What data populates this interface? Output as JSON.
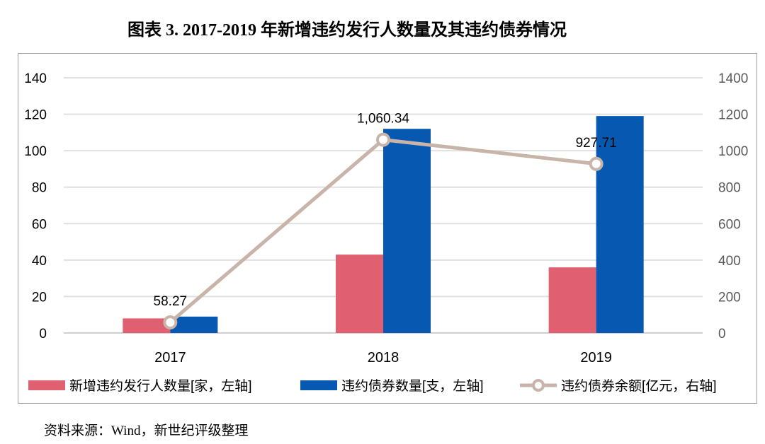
{
  "title": "图表 3. 2017-2019 年新增违约发行人数量及其违约债券情况",
  "source": "资料来源：Wind，新世纪评级整理",
  "chart_data": {
    "type": "bar+line",
    "categories": [
      "2017",
      "2018",
      "2019"
    ],
    "y_left": {
      "ylim": [
        0,
        140
      ],
      "ticks": [
        0,
        20,
        40,
        60,
        80,
        100,
        120,
        140
      ]
    },
    "y_right": {
      "ylim": [
        0,
        1400
      ],
      "ticks": [
        0,
        200,
        400,
        600,
        800,
        1000,
        1200,
        1400
      ]
    },
    "grid": true,
    "legend_placement": "bottom",
    "series": [
      {
        "name": "新增违约发行人数量[家，左轴]",
        "type": "bar",
        "axis": "left",
        "color": "#e06072",
        "values": [
          8,
          43,
          36
        ]
      },
      {
        "name": "违约债券数量[支，左轴]",
        "type": "bar",
        "axis": "left",
        "color": "#0658b0",
        "values": [
          9,
          112,
          119
        ]
      },
      {
        "name": "违约债券余额[亿元，右轴]",
        "type": "line",
        "axis": "right",
        "color": "#c8b4a8",
        "values": [
          58.27,
          1060.34,
          927.71
        ],
        "labels": [
          "58.27",
          "1,060.34",
          "927.71"
        ]
      }
    ]
  }
}
